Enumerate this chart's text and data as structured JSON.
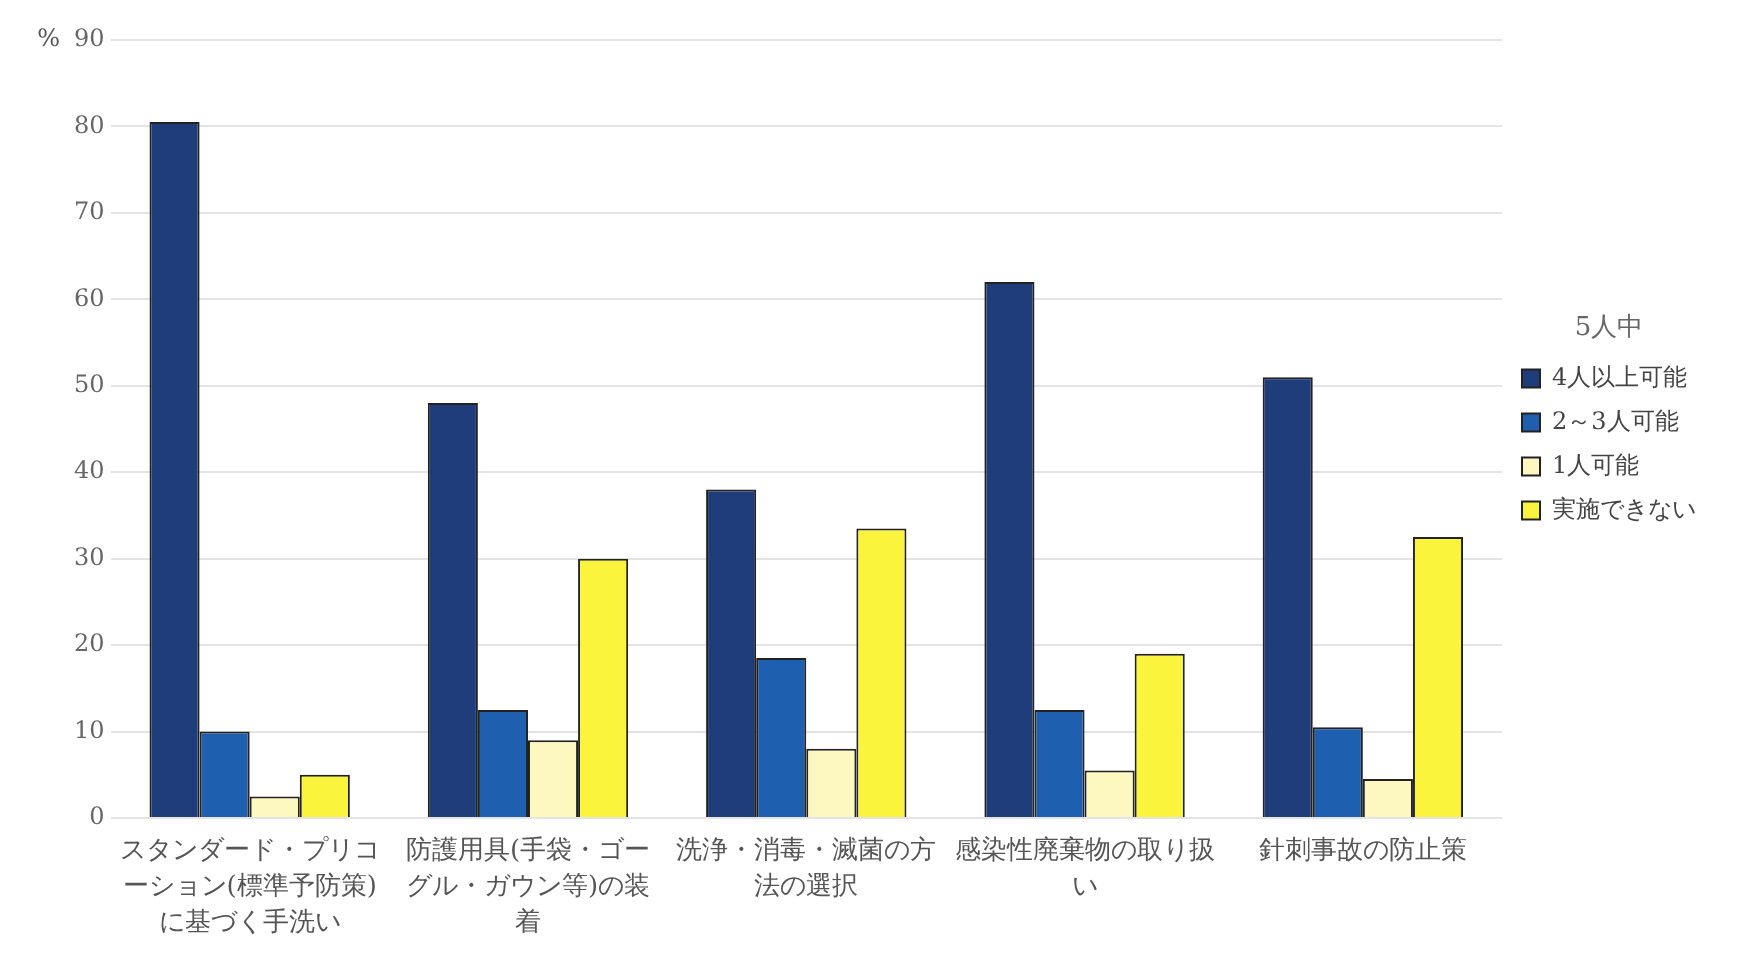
{
  "chart_data": {
    "type": "bar",
    "ylabel": "%",
    "legend_title": "5人中",
    "categories": [
      "スタンダード・プリコーション(標準予防策)に基づく手洗い",
      "防護用具(手袋・ゴーグル・ガウン等)の装着",
      "洗浄・消毒・滅菌の方法の選択",
      "感染性廃棄物の取り扱い",
      "針刺事故の防止策"
    ],
    "series": [
      {
        "name": "4人以上可能",
        "color": "#1f3d7a",
        "values": [
          80.5,
          48,
          38,
          62,
          51
        ]
      },
      {
        "name": "2～3人可能",
        "color": "#1f5fb0",
        "values": [
          10,
          12.5,
          18.5,
          12.5,
          10.5
        ]
      },
      {
        "name": "1人可能",
        "color": "#fdf8c0",
        "values": [
          2.5,
          9,
          8,
          5.5,
          4.5
        ]
      },
      {
        "name": "実施できない",
        "color": "#fbf43c",
        "values": [
          5,
          30,
          33.5,
          19,
          32.5
        ]
      }
    ],
    "ylim": [
      0,
      90
    ],
    "yticks": [
      0,
      10,
      20,
      30,
      40,
      50,
      60,
      70,
      80,
      90
    ],
    "grid": "y",
    "legend": "right"
  }
}
